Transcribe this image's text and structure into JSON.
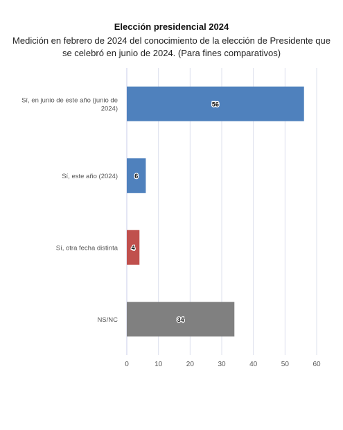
{
  "chart_data": {
    "type": "bar",
    "orientation": "horizontal",
    "title": "Elección presidencial 2024",
    "subtitle": "Medición en febrero de 2024 del conocimiento de la elección de Presidente que se celebró en junio de 2024. (Para fines comparativos)",
    "categories": [
      [
        "Sí, en junio de este año (junio de",
        "2024)"
      ],
      [
        "Sí, este año (2024)"
      ],
      [
        "Sí, otra fecha distinta"
      ],
      [
        "NS/NC"
      ]
    ],
    "values": [
      56,
      6,
      4,
      34
    ],
    "bar_colors": [
      "#4f81bd",
      "#4f81bd",
      "#c0504d",
      "#808080"
    ],
    "xlim": [
      0,
      60
    ],
    "xticks": [
      0,
      10,
      20,
      30,
      40,
      50,
      60
    ],
    "grid": true,
    "xlabel": "",
    "ylabel": ""
  }
}
